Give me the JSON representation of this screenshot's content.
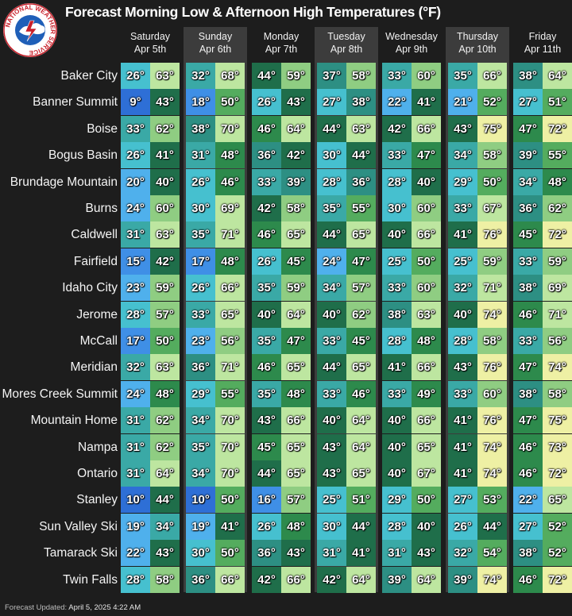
{
  "title": "Forecast Morning Low & Afternoon High Temperatures (°F)",
  "logo": {
    "ring_text": "NATIONAL WEATHER SERVICE"
  },
  "days": [
    {
      "day": "Saturday",
      "date": "Apr 5th"
    },
    {
      "day": "Sunday",
      "date": "Apr 6th"
    },
    {
      "day": "Monday",
      "date": "Apr 7th"
    },
    {
      "day": "Tuesday",
      "date": "Apr 8th"
    },
    {
      "day": "Wednesday",
      "date": "Apr 9th"
    },
    {
      "day": "Thursday",
      "date": "Apr 10th"
    },
    {
      "day": "Friday",
      "date": "Apr 11th"
    }
  ],
  "locations": [
    {
      "name": "Baker City",
      "temps": [
        [
          26,
          63
        ],
        [
          32,
          68
        ],
        [
          44,
          59
        ],
        [
          37,
          58
        ],
        [
          33,
          60
        ],
        [
          35,
          66
        ],
        [
          38,
          64
        ]
      ]
    },
    {
      "name": "Banner Summit",
      "temps": [
        [
          9,
          43
        ],
        [
          18,
          50
        ],
        [
          26,
          43
        ],
        [
          27,
          38
        ],
        [
          22,
          41
        ],
        [
          21,
          52
        ],
        [
          27,
          51
        ]
      ]
    },
    {
      "name": "Boise",
      "temps": [
        [
          33,
          62
        ],
        [
          38,
          70
        ],
        [
          46,
          64
        ],
        [
          44,
          63
        ],
        [
          42,
          66
        ],
        [
          43,
          75
        ],
        [
          47,
          72
        ]
      ]
    },
    {
      "name": "Bogus Basin",
      "temps": [
        [
          26,
          41
        ],
        [
          31,
          48
        ],
        [
          36,
          42
        ],
        [
          30,
          44
        ],
        [
          33,
          47
        ],
        [
          34,
          58
        ],
        [
          39,
          55
        ]
      ]
    },
    {
      "name": "Brundage Mountain",
      "temps": [
        [
          20,
          40
        ],
        [
          26,
          46
        ],
        [
          33,
          39
        ],
        [
          28,
          36
        ],
        [
          28,
          40
        ],
        [
          29,
          50
        ],
        [
          34,
          48
        ]
      ]
    },
    {
      "name": "Burns",
      "temps": [
        [
          24,
          60
        ],
        [
          30,
          69
        ],
        [
          42,
          58
        ],
        [
          35,
          55
        ],
        [
          30,
          60
        ],
        [
          33,
          67
        ],
        [
          36,
          62
        ]
      ]
    },
    {
      "name": "Caldwell",
      "temps": [
        [
          31,
          63
        ],
        [
          35,
          71
        ],
        [
          46,
          65
        ],
        [
          44,
          65
        ],
        [
          40,
          66
        ],
        [
          41,
          76
        ],
        [
          45,
          72
        ]
      ]
    },
    {
      "name": "Fairfield",
      "temps": [
        [
          15,
          42
        ],
        [
          17,
          48
        ],
        [
          26,
          45
        ],
        [
          24,
          47
        ],
        [
          25,
          50
        ],
        [
          25,
          59
        ],
        [
          33,
          59
        ]
      ]
    },
    {
      "name": "Idaho City",
      "temps": [
        [
          23,
          59
        ],
        [
          26,
          66
        ],
        [
          35,
          59
        ],
        [
          34,
          57
        ],
        [
          33,
          60
        ],
        [
          32,
          71
        ],
        [
          38,
          69
        ]
      ]
    },
    {
      "name": "Jerome",
      "temps": [
        [
          28,
          57
        ],
        [
          33,
          65
        ],
        [
          40,
          64
        ],
        [
          40,
          62
        ],
        [
          38,
          63
        ],
        [
          40,
          74
        ],
        [
          46,
          71
        ]
      ]
    },
    {
      "name": "McCall",
      "temps": [
        [
          17,
          50
        ],
        [
          23,
          56
        ],
        [
          35,
          47
        ],
        [
          33,
          45
        ],
        [
          28,
          48
        ],
        [
          28,
          58
        ],
        [
          33,
          56
        ]
      ]
    },
    {
      "name": "Meridian",
      "temps": [
        [
          32,
          63
        ],
        [
          36,
          71
        ],
        [
          46,
          65
        ],
        [
          44,
          65
        ],
        [
          41,
          66
        ],
        [
          43,
          76
        ],
        [
          47,
          74
        ]
      ]
    },
    {
      "name": "Mores Creek Summit",
      "temps": [
        [
          24,
          48
        ],
        [
          29,
          55
        ],
        [
          35,
          48
        ],
        [
          33,
          46
        ],
        [
          33,
          49
        ],
        [
          33,
          60
        ],
        [
          38,
          58
        ]
      ]
    },
    {
      "name": "Mountain Home",
      "temps": [
        [
          31,
          62
        ],
        [
          34,
          70
        ],
        [
          43,
          66
        ],
        [
          40,
          64
        ],
        [
          40,
          66
        ],
        [
          41,
          76
        ],
        [
          47,
          75
        ]
      ]
    },
    {
      "name": "Nampa",
      "temps": [
        [
          31,
          62
        ],
        [
          35,
          70
        ],
        [
          45,
          65
        ],
        [
          43,
          64
        ],
        [
          40,
          65
        ],
        [
          41,
          74
        ],
        [
          46,
          73
        ]
      ]
    },
    {
      "name": "Ontario",
      "temps": [
        [
          31,
          64
        ],
        [
          34,
          70
        ],
        [
          44,
          65
        ],
        [
          43,
          65
        ],
        [
          40,
          67
        ],
        [
          41,
          74
        ],
        [
          46,
          72
        ]
      ]
    },
    {
      "name": "Stanley",
      "temps": [
        [
          10,
          44
        ],
        [
          10,
          50
        ],
        [
          16,
          57
        ],
        [
          25,
          51
        ],
        [
          29,
          50
        ],
        [
          27,
          53
        ],
        [
          22,
          65
        ]
      ]
    },
    {
      "name": "Sun Valley Ski",
      "temps": [
        [
          19,
          34
        ],
        [
          19,
          41
        ],
        [
          26,
          48
        ],
        [
          30,
          44
        ],
        [
          28,
          40
        ],
        [
          26,
          44
        ],
        [
          27,
          52
        ]
      ]
    },
    {
      "name": "Tamarack Ski",
      "temps": [
        [
          22,
          43
        ],
        [
          30,
          50
        ],
        [
          36,
          43
        ],
        [
          31,
          41
        ],
        [
          31,
          43
        ],
        [
          32,
          54
        ],
        [
          38,
          52
        ]
      ]
    },
    {
      "name": "Twin Falls",
      "temps": [
        [
          28,
          58
        ],
        [
          36,
          66
        ],
        [
          42,
          66
        ],
        [
          42,
          64
        ],
        [
          39,
          64
        ],
        [
          39,
          74
        ],
        [
          46,
          72
        ]
      ]
    }
  ],
  "footer": {
    "label": "Forecast Updated:",
    "value": "April 5, 2025 4:22 AM"
  },
  "colors": {
    "background": "#1d1d1d",
    "alt_column": "#3c3c3c",
    "scale": [
      "#2e6fd6",
      "#3f8fe6",
      "#4fb0ec",
      "#46c0cf",
      "#3aa9a6",
      "#2d8f83",
      "#1f6e4a",
      "#2d8a4c",
      "#54ac5e",
      "#8fcd82",
      "#bde6a0",
      "#eef0a4"
    ]
  }
}
